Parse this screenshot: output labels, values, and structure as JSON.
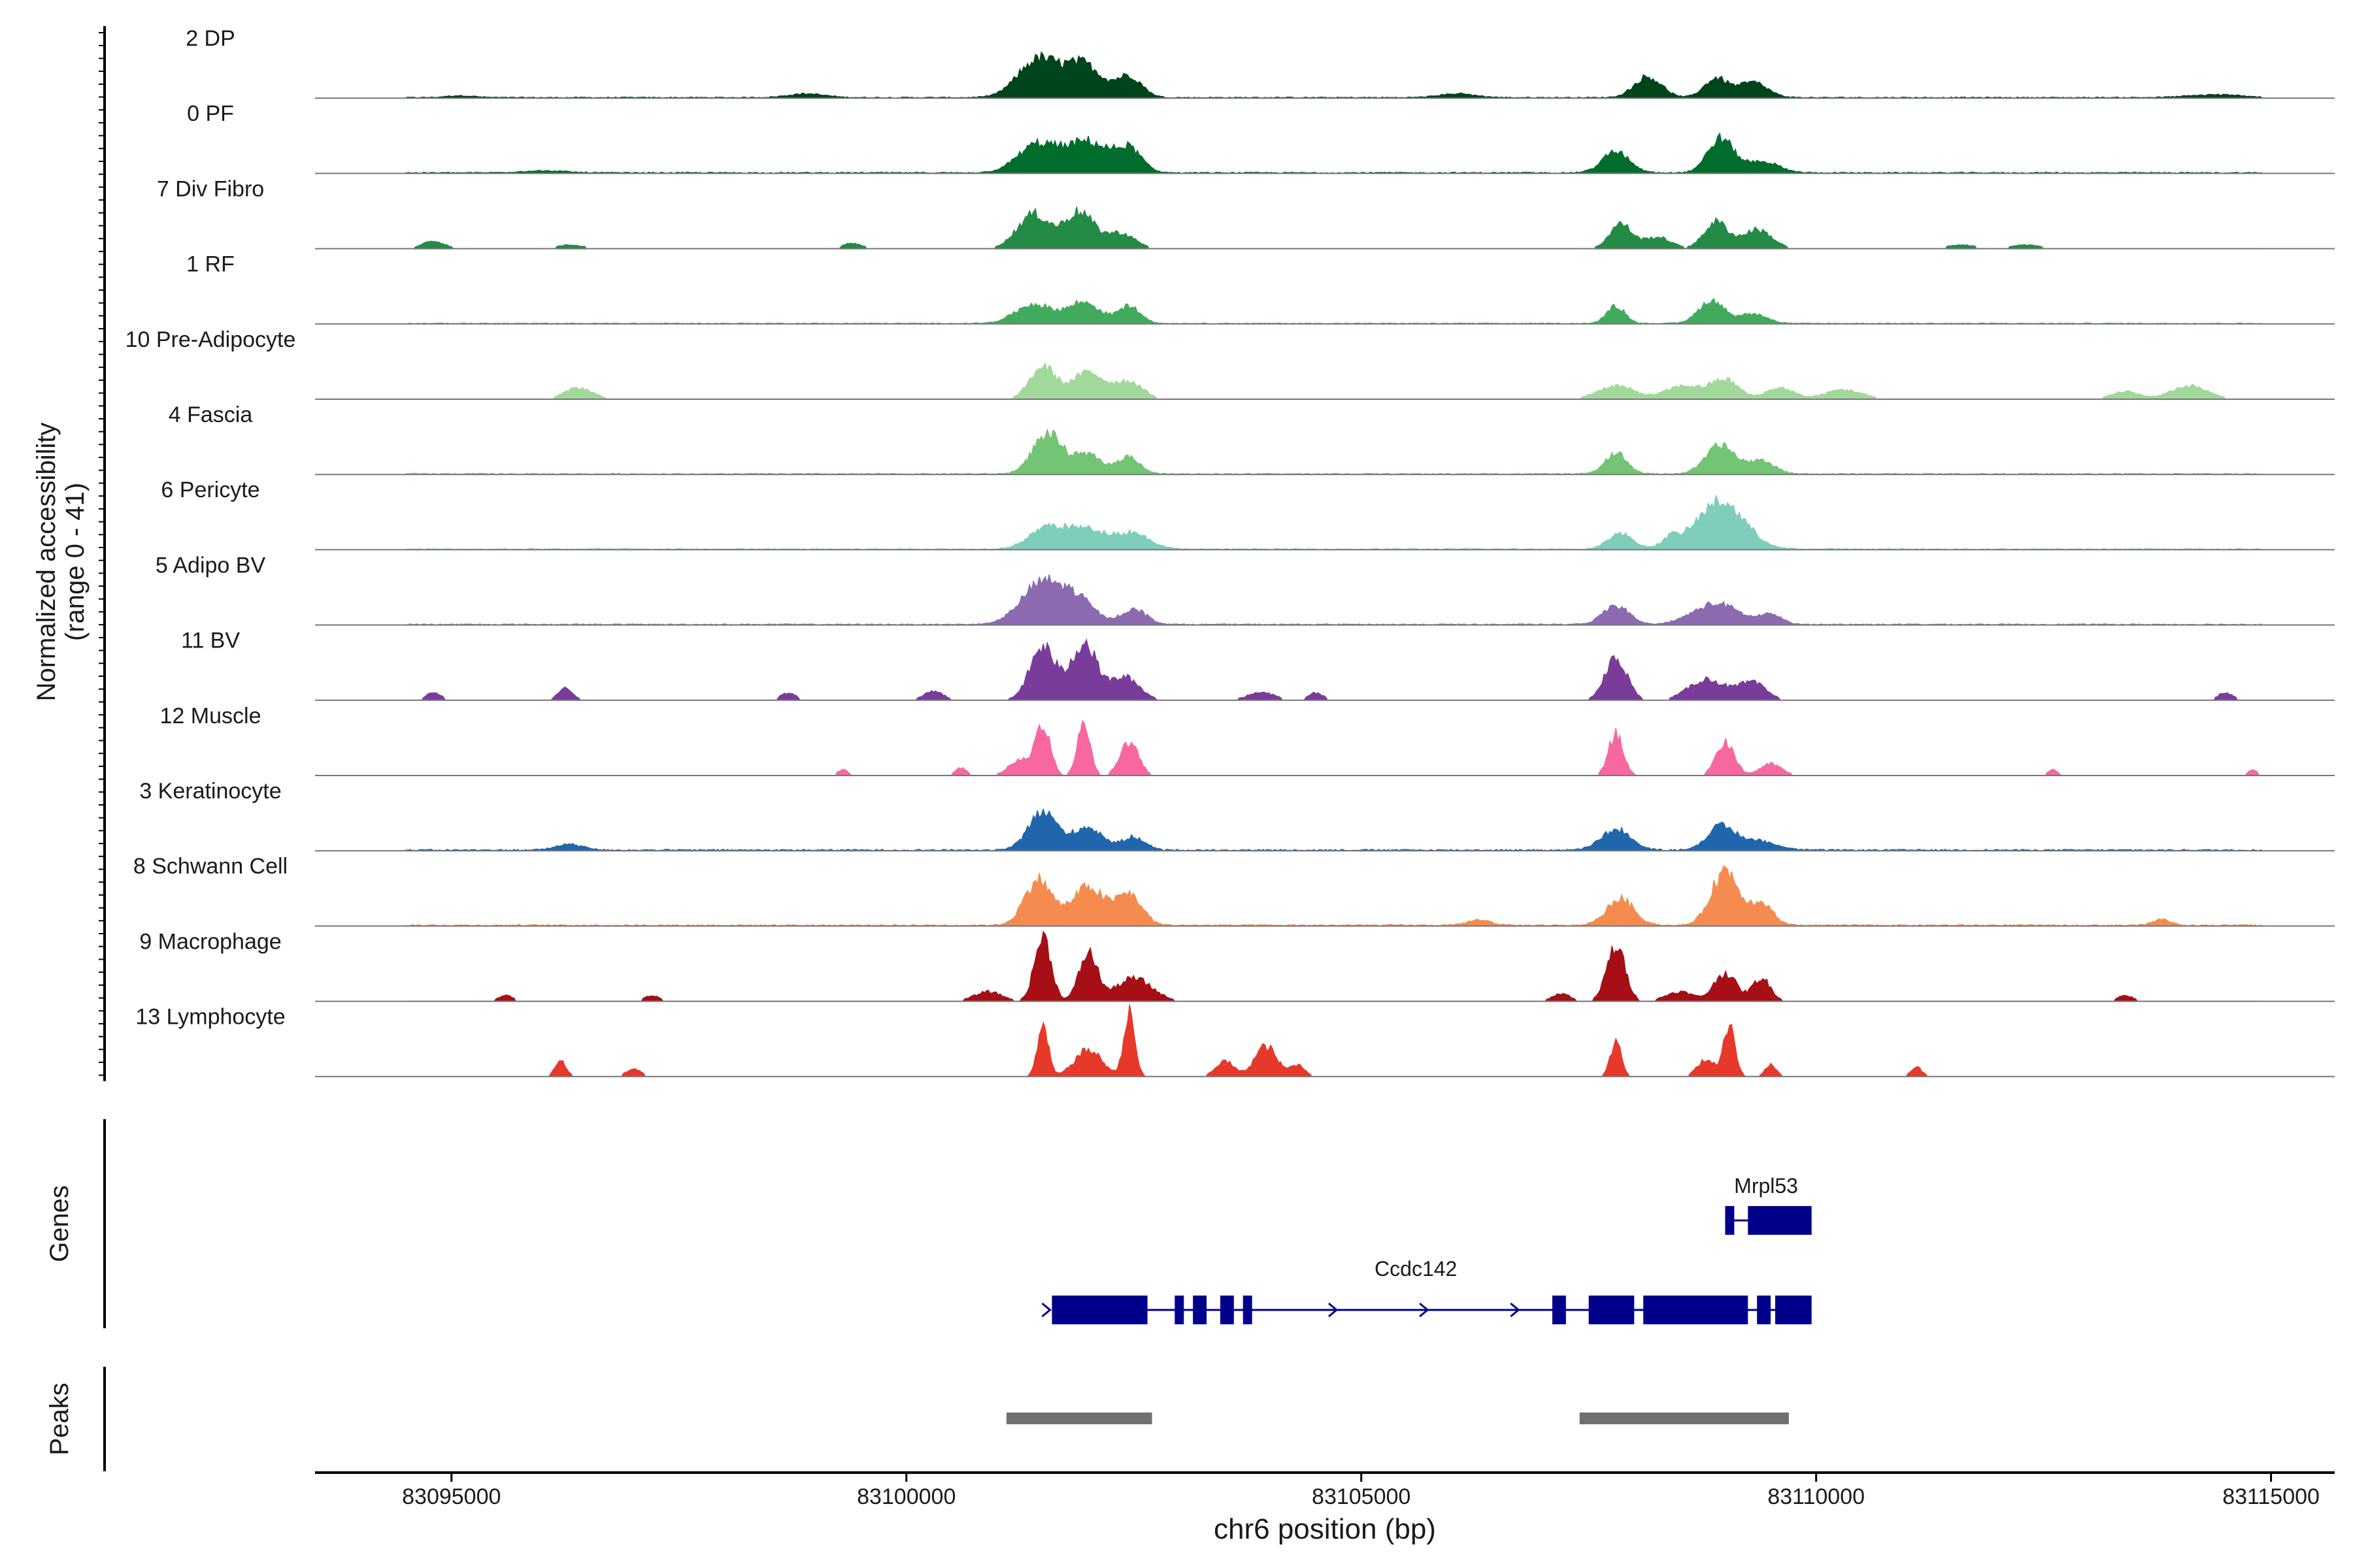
{
  "chart_data": {
    "type": "area",
    "title": "",
    "chrom": "chr6",
    "xlabel": "chr6 position (bp)",
    "ylabel": "Normalized accessibility",
    "ylabel_range": "(range 0 - 41)",
    "ylim": [
      0,
      41
    ],
    "xlim": [
      83093500,
      83115700
    ],
    "xticks": [
      83095000,
      83100000,
      83105000,
      83110000,
      83115000
    ],
    "xtick_labels": [
      "83095000",
      "83100000",
      "83105000",
      "83110000",
      "83115000"
    ],
    "series": [
      {
        "name": "2 DP",
        "color": "#00441B",
        "peaks": [
          [
            83101450,
            220,
            20
          ],
          [
            83101950,
            200,
            17
          ],
          [
            83102450,
            140,
            11
          ],
          [
            83108150,
            150,
            11
          ],
          [
            83108900,
            130,
            10
          ],
          [
            83109300,
            160,
            8
          ],
          [
            83095100,
            150,
            1
          ],
          [
            83098900,
            200,
            2
          ],
          [
            83106050,
            200,
            2
          ],
          [
            83114400,
            300,
            1.5
          ]
        ],
        "floor": 0.6
      },
      {
        "name": "0 PF",
        "color": "#006D2C",
        "peaks": [
          [
            83101450,
            220,
            15
          ],
          [
            83102000,
            220,
            16
          ],
          [
            83102450,
            140,
            12
          ],
          [
            83107800,
            150,
            11
          ],
          [
            83108950,
            140,
            18
          ],
          [
            83109400,
            180,
            6
          ],
          [
            83096000,
            250,
            1
          ]
        ],
        "floor": 0.7
      },
      {
        "name": "7 Div Fibro",
        "color": "#238B45",
        "peaks": [
          [
            83094800,
            120,
            4
          ],
          [
            83101400,
            180,
            18
          ],
          [
            83101900,
            160,
            19
          ],
          [
            83102350,
            160,
            8
          ],
          [
            83107850,
            120,
            13
          ],
          [
            83108250,
            150,
            6
          ],
          [
            83108900,
            130,
            14
          ],
          [
            83109350,
            160,
            10
          ],
          [
            83096300,
            150,
            2
          ],
          [
            83099400,
            100,
            3
          ],
          [
            83111600,
            150,
            2
          ],
          [
            83112300,
            150,
            2
          ]
        ],
        "floor": 0.4,
        "gappy": true
      },
      {
        "name": "1 RF",
        "color": "#41AB5D",
        "peaks": [
          [
            83101400,
            200,
            10
          ],
          [
            83101950,
            180,
            11
          ],
          [
            83102450,
            120,
            9
          ],
          [
            83107800,
            100,
            9
          ],
          [
            83108850,
            140,
            12
          ],
          [
            83109300,
            150,
            5
          ]
        ],
        "floor": 0.5
      },
      {
        "name": "10 Pre-Adipocyte",
        "color": "#A1D99B",
        "peaks": [
          [
            83101500,
            140,
            17
          ],
          [
            83102000,
            180,
            14
          ],
          [
            83102450,
            150,
            9
          ],
          [
            83096400,
            150,
            6
          ],
          [
            83107800,
            200,
            7
          ],
          [
            83108550,
            200,
            7
          ],
          [
            83109000,
            150,
            10
          ],
          [
            83109600,
            150,
            6
          ],
          [
            83110300,
            200,
            5
          ],
          [
            83114100,
            200,
            7
          ],
          [
            83113400,
            150,
            4
          ]
        ],
        "floor": 0.5,
        "gappy": true
      },
      {
        "name": "4 Fascia",
        "color": "#74C476",
        "peaks": [
          [
            83101550,
            160,
            21
          ],
          [
            83102000,
            160,
            10
          ],
          [
            83102450,
            120,
            9
          ],
          [
            83107800,
            120,
            11
          ],
          [
            83108950,
            160,
            15
          ],
          [
            83109400,
            140,
            7
          ]
        ],
        "floor": 0.6
      },
      {
        "name": "6 Pericyte",
        "color": "#7FCDBB",
        "peaks": [
          [
            83101550,
            200,
            11
          ],
          [
            83102000,
            220,
            10
          ],
          [
            83102500,
            180,
            8
          ],
          [
            83107850,
            140,
            8
          ],
          [
            83108950,
            260,
            25
          ],
          [
            83108400,
            100,
            5
          ]
        ],
        "floor": 0.6
      },
      {
        "name": "5 Adipo BV",
        "color": "#8C6BB1",
        "peaks": [
          [
            83101500,
            230,
            22
          ],
          [
            83101900,
            180,
            11
          ],
          [
            83102500,
            140,
            8
          ],
          [
            83107800,
            140,
            10
          ],
          [
            83108900,
            250,
            11
          ],
          [
            83109500,
            120,
            5
          ]
        ],
        "floor": 0.6
      },
      {
        "name": "11 BV",
        "color": "#7A3C9B",
        "peaks": [
          [
            83101500,
            140,
            28
          ],
          [
            83101950,
            140,
            30
          ],
          [
            83102400,
            160,
            12
          ],
          [
            83107800,
            120,
            22
          ],
          [
            83108800,
            200,
            11
          ],
          [
            83109300,
            150,
            9
          ],
          [
            83094800,
            80,
            4
          ],
          [
            83096250,
            80,
            6
          ],
          [
            83098700,
            80,
            4
          ],
          [
            83100300,
            100,
            5
          ],
          [
            83103900,
            150,
            4
          ],
          [
            83104500,
            80,
            4
          ],
          [
            83114500,
            80,
            4
          ]
        ],
        "floor": 0.0,
        "gappy": true
      },
      {
        "name": "12 Muscle",
        "color": "#F768A1",
        "peaks": [
          [
            83101500,
            80,
            27
          ],
          [
            83101950,
            70,
            27
          ],
          [
            83102450,
            100,
            18
          ],
          [
            83107800,
            80,
            22
          ],
          [
            83109000,
            100,
            18
          ],
          [
            83101250,
            120,
            8
          ],
          [
            83109500,
            120,
            6
          ],
          [
            83099300,
            60,
            3
          ],
          [
            83100600,
            60,
            4
          ],
          [
            83112600,
            50,
            3
          ],
          [
            83114800,
            50,
            3
          ]
        ],
        "floor": 0.0,
        "gappy": true
      },
      {
        "name": "3 Keratinocyte",
        "color": "#2166AC",
        "peaks": [
          [
            83101500,
            160,
            20
          ],
          [
            83102000,
            160,
            12
          ],
          [
            83102500,
            120,
            7
          ],
          [
            83107800,
            160,
            11
          ],
          [
            83108950,
            150,
            12
          ],
          [
            83109350,
            200,
            5
          ],
          [
            83096300,
            150,
            3
          ]
        ],
        "floor": 0.8
      },
      {
        "name": "8 Schwann Cell",
        "color": "#F68B50",
        "peaks": [
          [
            83101450,
            150,
            24
          ],
          [
            83102000,
            180,
            20
          ],
          [
            83102450,
            140,
            16
          ],
          [
            83107850,
            150,
            14
          ],
          [
            83109000,
            150,
            29
          ],
          [
            83109400,
            120,
            12
          ],
          [
            83106300,
            120,
            3
          ],
          [
            83113800,
            100,
            3
          ]
        ],
        "floor": 0.8
      },
      {
        "name": "9 Macrophage",
        "color": "#A50F15",
        "peaks": [
          [
            83101500,
            90,
            34
          ],
          [
            83102000,
            100,
            25
          ],
          [
            83102500,
            200,
            12
          ],
          [
            83107800,
            100,
            29
          ],
          [
            83109000,
            120,
            15
          ],
          [
            83109400,
            100,
            12
          ],
          [
            83100900,
            150,
            5
          ],
          [
            83095600,
            80,
            3
          ],
          [
            83097200,
            80,
            3
          ],
          [
            83107200,
            100,
            4
          ],
          [
            83108500,
            150,
            5
          ],
          [
            83113400,
            80,
            3
          ]
        ],
        "floor": 0.0,
        "gappy": true
      },
      {
        "name": "13 Lymphocyte",
        "color": "#E6392A",
        "peaks": [
          [
            83101500,
            60,
            26
          ],
          [
            83102450,
            60,
            33
          ],
          [
            83102000,
            150,
            14
          ],
          [
            83103950,
            120,
            16
          ],
          [
            83103500,
            100,
            8
          ],
          [
            83104300,
            80,
            6
          ],
          [
            83096200,
            60,
            8
          ],
          [
            83097000,
            80,
            4
          ],
          [
            83107800,
            60,
            18
          ],
          [
            83108800,
            100,
            9
          ],
          [
            83109050,
            60,
            28
          ],
          [
            83109500,
            60,
            6
          ],
          [
            83111100,
            60,
            5
          ]
        ],
        "floor": 0.0,
        "gappy": true
      }
    ],
    "genes": [
      {
        "name": "Mrpl53",
        "start": 83109000,
        "end": 83109950,
        "strand": "+",
        "exons": [
          [
            83109000,
            83109100
          ],
          [
            83109250,
            83109950
          ]
        ]
      },
      {
        "name": "Ccdc142",
        "start": 83101600,
        "end": 83109950,
        "strand": "+",
        "exons": [
          [
            83101600,
            83102650
          ],
          [
            83102950,
            83103050
          ],
          [
            83103150,
            83103300
          ],
          [
            83103450,
            83103600
          ],
          [
            83103700,
            83103800
          ],
          [
            83107100,
            83107250
          ],
          [
            83107500,
            83108000
          ],
          [
            83108100,
            83109250
          ],
          [
            83109350,
            83109500
          ],
          [
            83109550,
            83109950
          ]
        ]
      }
    ],
    "peaks_track": [
      [
        83101100,
        83102700
      ],
      [
        83107400,
        83109700
      ]
    ],
    "track_labels": {
      "genes": "Genes",
      "peaks": "Peaks"
    }
  }
}
